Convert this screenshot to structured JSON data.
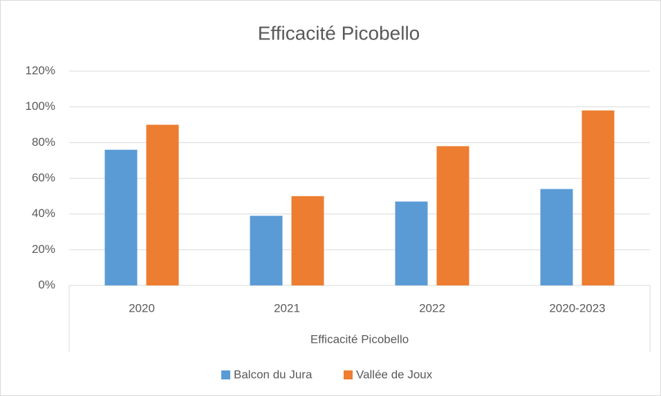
{
  "chart_data": {
    "type": "bar",
    "title": "Efficacité Picobello",
    "x_label": "Efficacité Picobello",
    "categories": [
      "2020",
      "2021",
      "2022",
      "2020-2023"
    ],
    "series": [
      {
        "name": "Balcon du Jura",
        "color": "#5b9bd5",
        "values": [
          76,
          39,
          47,
          54
        ]
      },
      {
        "name": "Vallée de Joux",
        "color": "#ed7d31",
        "values": [
          90,
          50,
          78,
          98
        ]
      }
    ],
    "ylim": [
      0,
      120
    ],
    "yticks": [
      {
        "value": 0,
        "label": "0%"
      },
      {
        "value": 20,
        "label": "20%"
      },
      {
        "value": 40,
        "label": "40%"
      },
      {
        "value": 60,
        "label": "60%"
      },
      {
        "value": 80,
        "label": "80%"
      },
      {
        "value": 100,
        "label": "100%"
      },
      {
        "value": 120,
        "label": "120%"
      }
    ],
    "grid": true,
    "legend": "bottom"
  }
}
